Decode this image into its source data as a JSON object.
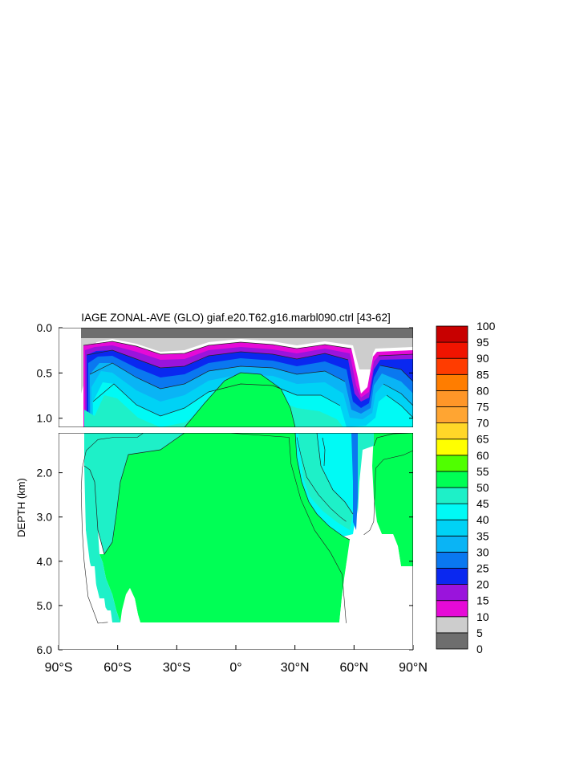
{
  "chart_data": {
    "type": "heatmap",
    "title": "IAGE ZONAL-AVE (GLO) giaf.e20.T62.g16.marbl090.ctrl [43-62]",
    "ylabel": "DEPTH (km)",
    "xlim": [
      -90,
      90
    ],
    "ylim": [
      6.0,
      0.0
    ],
    "upper_panel_depth_range": [
      0.0,
      1.1
    ],
    "lower_panel_depth_range": [
      1.1,
      6.0
    ],
    "x_ticks": [
      {
        "value": -90,
        "label": "90°S"
      },
      {
        "value": -60,
        "label": "60°S"
      },
      {
        "value": -30,
        "label": "30°S"
      },
      {
        "value": 0,
        "label": "0°"
      },
      {
        "value": 30,
        "label": "30°N"
      },
      {
        "value": 60,
        "label": "60°N"
      },
      {
        "value": 90,
        "label": "90°N"
      }
    ],
    "y_ticks_upper": [
      {
        "value": 0.0,
        "label": "0.0"
      },
      {
        "value": 0.5,
        "label": "0.5"
      },
      {
        "value": 1.0,
        "label": "1.0"
      }
    ],
    "y_ticks_lower": [
      {
        "value": 2.0,
        "label": "2.0"
      },
      {
        "value": 3.0,
        "label": "3.0"
      },
      {
        "value": 4.0,
        "label": "4.0"
      },
      {
        "value": 5.0,
        "label": "5.0"
      },
      {
        "value": 6.0,
        "label": "6.0"
      }
    ],
    "colorbar": {
      "levels": [
        "0",
        "5",
        "10",
        "15",
        "20",
        "25",
        "30",
        "35",
        "40",
        "45",
        "50",
        "55",
        "60",
        "65",
        "70",
        "75",
        "80",
        "85",
        "90",
        "95",
        "100"
      ],
      "colors": [
        "#6e6e6e",
        "#cdcdcd",
        "#e60ad7",
        "#9a14dc",
        "#0a28f0",
        "#0a78f0",
        "#0ab4f5",
        "#00d2f5",
        "#00faf5",
        "#1ef0c8",
        "#00ff55",
        "#50ff00",
        "#ffff00",
        "#ffd728",
        "#ffa532",
        "#ff9628",
        "#ff7d00",
        "#ff3c00",
        "#f01400",
        "#c80000"
      ]
    },
    "deep_isolines": [
      {
        "name": "age-50-contour",
        "points": [
          [
            -65,
            5.38
          ],
          [
            -70,
            5.4
          ],
          [
            -75,
            4.8
          ],
          [
            -77,
            4.0
          ],
          [
            -78,
            3.3
          ],
          [
            -78.5,
            2.4
          ],
          [
            -78,
            1.9
          ],
          [
            -76,
            1.5
          ],
          [
            -70,
            1.25
          ],
          [
            -62,
            1.2
          ],
          [
            -50,
            1.2
          ],
          [
            -43,
            1.1
          ],
          [
            -38,
            1.0
          ],
          [
            -30,
            0.8
          ],
          [
            -20,
            0.62
          ],
          [
            -10,
            0.52
          ],
          [
            0,
            0.5
          ],
          [
            10,
            0.5
          ],
          [
            20,
            0.62
          ],
          [
            25,
            0.9
          ],
          [
            27,
            1.2
          ],
          [
            28,
            1.8
          ],
          [
            33,
            2.6
          ],
          [
            40,
            3.3
          ],
          [
            48,
            3.8
          ],
          [
            54,
            4.3
          ],
          [
            56,
            5.4
          ]
        ]
      },
      {
        "name": "age-45-contour",
        "points": [
          [
            31,
            1.2
          ],
          [
            33,
            1.6
          ],
          [
            36,
            2.1
          ],
          [
            42,
            2.5
          ],
          [
            48,
            2.8
          ],
          [
            53,
            3.0
          ],
          [
            56,
            3.1
          ]
        ]
      },
      {
        "name": "age-50-contour-north",
        "points": [
          [
            65,
            3.4
          ],
          [
            68,
            3.3
          ],
          [
            70,
            3.1
          ],
          [
            71,
            1.9
          ],
          [
            75,
            1.7
          ],
          [
            85,
            1.6
          ],
          [
            90,
            1.5
          ]
        ]
      }
    ]
  }
}
